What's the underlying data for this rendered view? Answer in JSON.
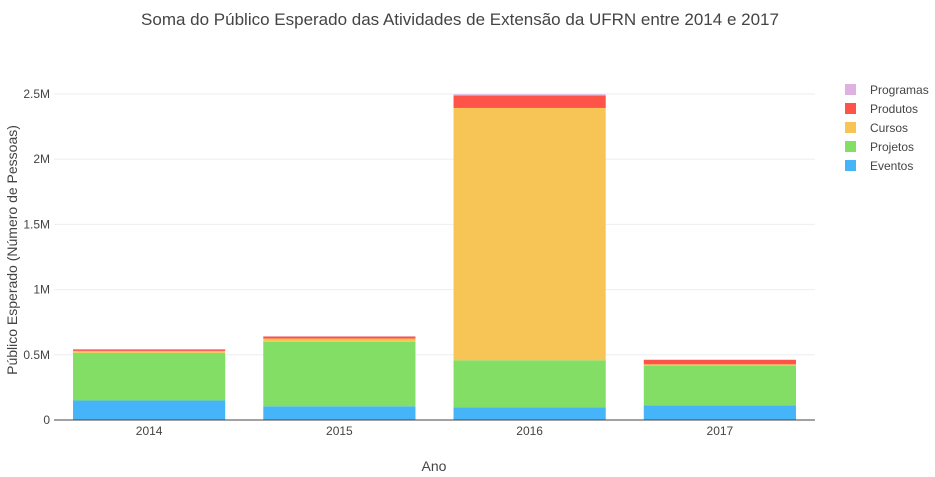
{
  "chart_data": {
    "type": "bar",
    "stacked": true,
    "title": "Soma do Público Esperado das Atividades de Extensão da UFRN entre 2014 e 2017",
    "xlabel": "Ano",
    "ylabel": "Público Esperado (Número de Pessoas)",
    "categories": [
      "2014",
      "2015",
      "2016",
      "2017"
    ],
    "ylim": [
      0,
      2500000
    ],
    "yticks": [
      0,
      500000,
      1000000,
      1500000,
      2000000,
      2500000
    ],
    "ytick_labels": [
      "0",
      "0.5M",
      "1M",
      "1.5M",
      "2M",
      "2.5M"
    ],
    "grid": true,
    "legend_position": "right",
    "series": [
      {
        "name": "Eventos",
        "color": "#46b4f8",
        "values": [
          150000,
          105000,
          98000,
          112000
        ]
      },
      {
        "name": "Projetos",
        "color": "#83de65",
        "values": [
          365000,
          495000,
          360000,
          305000
        ]
      },
      {
        "name": "Cursos",
        "color": "#f7c556",
        "values": [
          15000,
          25000,
          1935000,
          10000
        ]
      },
      {
        "name": "Produtos",
        "color": "#fd5349",
        "values": [
          10000,
          15000,
          95000,
          35000
        ]
      },
      {
        "name": "Programas",
        "color": "#dfb1e1",
        "values": [
          5000,
          2000,
          10000,
          2000
        ]
      }
    ]
  }
}
